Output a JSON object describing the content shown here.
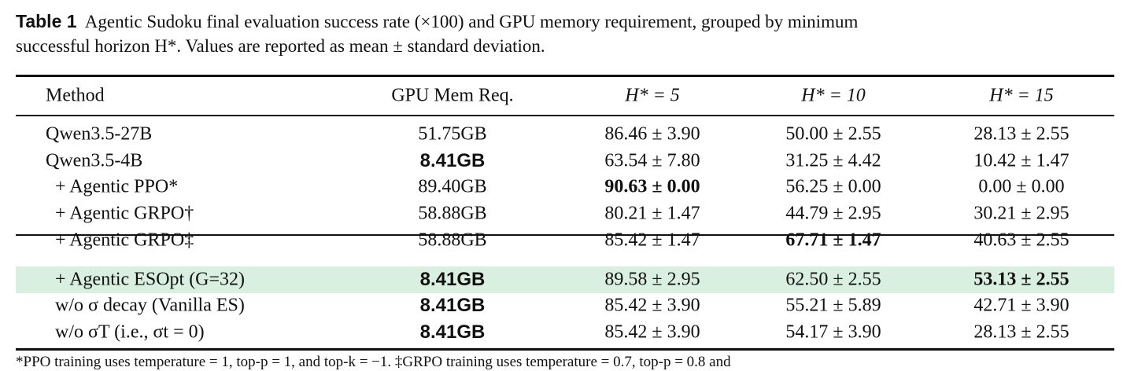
{
  "caption": {
    "label": "Table 1",
    "text_line1": "Agentic Sudoku final evaluation success rate (×100) and GPU memory requirement, grouped by minimum",
    "text_line2": "successful horizon H*. Values are reported as mean ± standard deviation."
  },
  "table": {
    "header": [
      "Method",
      "GPU Mem Req.",
      "H* = 5",
      "H* = 10",
      "H* = 15"
    ],
    "groups": [
      [
        {
          "method": "Qwen3.5-27B",
          "indent": false,
          "cells": [
            "51.75GB",
            "86.46 ± 3.90",
            "50.00 ± 2.55",
            "28.13 ± 2.55"
          ]
        },
        {
          "method": "Qwen3.5-4B",
          "indent": false,
          "cells": [
            {
              "text": "8.41GB",
              "bold": true
            },
            "63.54 ± 7.80",
            "31.25 ± 4.42",
            "10.42 ± 1.47"
          ]
        },
        {
          "method": "+ Agentic PPO*",
          "indent": true,
          "cells": [
            "89.40GB",
            {
              "text": "90.63 ± 0.00",
              "bold": true
            },
            "56.25 ± 0.00",
            "0.00 ± 0.00"
          ]
        },
        {
          "method": "+ Agentic GRPO†",
          "indent": true,
          "cells": [
            "58.88GB",
            "80.21 ± 1.47",
            "44.79 ± 2.95",
            "30.21 ± 2.95"
          ]
        },
        {
          "method": "+ Agentic GRPO‡",
          "indent": true,
          "cells": [
            "58.88GB",
            "85.42 ± 1.47",
            {
              "text": "67.71 ± 1.47",
              "bold": true
            },
            "40.63 ± 2.55"
          ]
        }
      ],
      [
        {
          "method": "+ Agentic ESOpt (G=32)",
          "indent": true,
          "highlight": true,
          "cells": [
            {
              "text": "8.41GB",
              "bold": true
            },
            "89.58 ± 2.95",
            "62.50 ± 2.55",
            {
              "text": "53.13 ± 2.55",
              "bold": true
            }
          ]
        },
        {
          "method": "w/o σ decay (Vanilla ES)",
          "indent": true,
          "cells": [
            {
              "text": "8.41GB",
              "bold": true
            },
            "85.42 ± 3.90",
            "55.21 ± 5.89",
            "42.71 ± 3.90"
          ]
        },
        {
          "method": "w/o σT (i.e., σt = 0)",
          "indent": true,
          "cells": [
            {
              "text": "8.41GB",
              "bold": true
            },
            "85.42 ± 3.90",
            "54.17 ± 3.90",
            "28.13 ± 2.55"
          ]
        }
      ]
    ],
    "footnote": "*PPO training uses temperature = 1, top-p = 1, and top-k = −1. ‡GRPO training uses temperature = 0.7, top-p = 0.8 and"
  }
}
